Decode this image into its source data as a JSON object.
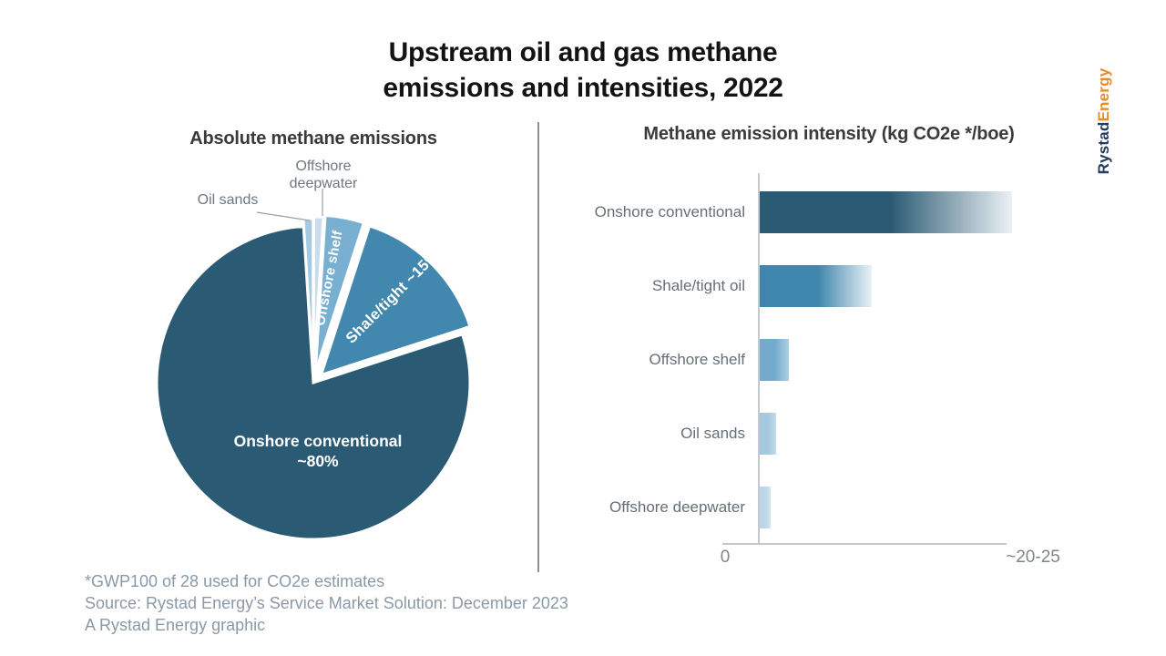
{
  "title": {
    "line1": "Upstream oil and gas methane",
    "line2": "emissions and intensities, 2022"
  },
  "logo": {
    "part1": "Rystad",
    "part2": "Energy"
  },
  "chart_data": [
    {
      "type": "pie",
      "title": "Absolute methane emissions",
      "order": "clockwise from 12 o'clock",
      "slices": [
        {
          "label": "Offshore deepwater",
          "value": 1,
          "color": "#c8dcea",
          "label_style": "outside"
        },
        {
          "label": "Offshore shelf",
          "value": 4,
          "color": "#79afd1",
          "label_style": "inside-rotated",
          "display": "Offshore shelf"
        },
        {
          "label": "Shale/tight",
          "value": 15,
          "color": "#4187ae",
          "label_style": "inside-rotated",
          "display": "Shale/tight ~15%"
        },
        {
          "label": "Onshore conventional",
          "value": 79,
          "color": "#2b5b74",
          "label_style": "inside-horizontal",
          "display_lines": [
            "Onshore conventional",
            "~80%"
          ]
        },
        {
          "label": "Oil sands",
          "value": 1,
          "color": "#a5c9df",
          "label_style": "outside"
        }
      ]
    },
    {
      "type": "bar",
      "orientation": "horizontal",
      "title": "Methane emission intensity (kg CO2e */boe)",
      "categories": [
        "Onshore conventional",
        "Shale/tight oil",
        "Offshore shelf",
        "Oil sands",
        "Offshore deepwater"
      ],
      "values": [
        22.5,
        10,
        2.6,
        1.5,
        1.0
      ],
      "xlim": [
        0,
        25
      ],
      "x_tick_labels": [
        "0",
        "~20-25"
      ],
      "grid": false,
      "legend": "none",
      "bar_colors": [
        "#2b5b74",
        "#3e86ac",
        "#72abce",
        "#a5c9df",
        "#bad6e7"
      ],
      "bar_fade_tips": [
        "#ecf1f5",
        "#eaf1f6",
        "#aecfe3",
        "#c6dcea",
        "#d7e6f0"
      ]
    }
  ],
  "footnotes": [
    "*GWP100 of 28 used for CO2e estimates",
    "Source: Rystad Energy’s Service Market Solution: December 2023",
    "A Rystad Energy graphic"
  ]
}
